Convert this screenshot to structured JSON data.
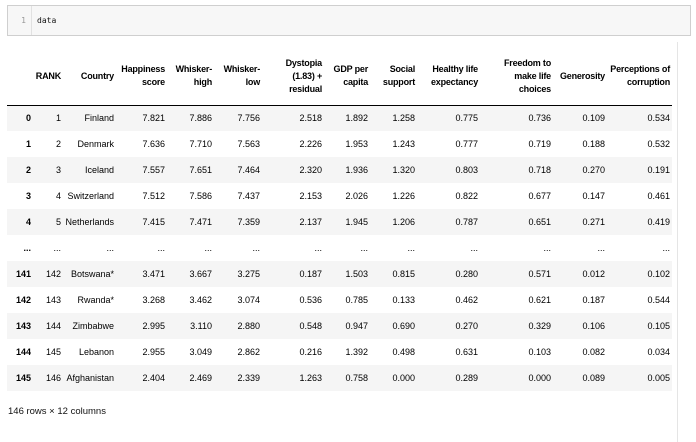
{
  "code_cell": {
    "line_number": "1",
    "code": "data"
  },
  "dataframe": {
    "index_header": "",
    "columns": [
      "RANK",
      "Country",
      "Happiness\nscore",
      "Whisker-\nhigh",
      "Whisker-\nlow",
      "Dystopia\n(1.83) +\nresidual",
      "GDP per\ncapita",
      "Social\nsupport",
      "Healthy life\nexpectancy",
      "Freedom to\nmake life\nchoices",
      "Generosity",
      "Perceptions of\ncorruption"
    ],
    "rows": [
      {
        "index": "0",
        "cells": [
          "1",
          "Finland",
          "7.821",
          "7.886",
          "7.756",
          "2.518",
          "1.892",
          "1.258",
          "0.775",
          "0.736",
          "0.109",
          "0.534"
        ]
      },
      {
        "index": "1",
        "cells": [
          "2",
          "Denmark",
          "7.636",
          "7.710",
          "7.563",
          "2.226",
          "1.953",
          "1.243",
          "0.777",
          "0.719",
          "0.188",
          "0.532"
        ]
      },
      {
        "index": "2",
        "cells": [
          "3",
          "Iceland",
          "7.557",
          "7.651",
          "7.464",
          "2.320",
          "1.936",
          "1.320",
          "0.803",
          "0.718",
          "0.270",
          "0.191"
        ]
      },
      {
        "index": "3",
        "cells": [
          "4",
          "Switzerland",
          "7.512",
          "7.586",
          "7.437",
          "2.153",
          "2.026",
          "1.226",
          "0.822",
          "0.677",
          "0.147",
          "0.461"
        ]
      },
      {
        "index": "4",
        "cells": [
          "5",
          "Netherlands",
          "7.415",
          "7.471",
          "7.359",
          "2.137",
          "1.945",
          "1.206",
          "0.787",
          "0.651",
          "0.271",
          "0.419"
        ]
      },
      {
        "index": "...",
        "cells": [
          "...",
          "...",
          "...",
          "...",
          "...",
          "...",
          "...",
          "...",
          "...",
          "...",
          "...",
          "..."
        ]
      },
      {
        "index": "141",
        "cells": [
          "142",
          "Botswana*",
          "3.471",
          "3.667",
          "3.275",
          "0.187",
          "1.503",
          "0.815",
          "0.280",
          "0.571",
          "0.012",
          "0.102"
        ]
      },
      {
        "index": "142",
        "cells": [
          "143",
          "Rwanda*",
          "3.268",
          "3.462",
          "3.074",
          "0.536",
          "0.785",
          "0.133",
          "0.462",
          "0.621",
          "0.187",
          "0.544"
        ]
      },
      {
        "index": "143",
        "cells": [
          "144",
          "Zimbabwe",
          "2.995",
          "3.110",
          "2.880",
          "0.548",
          "0.947",
          "0.690",
          "0.270",
          "0.329",
          "0.106",
          "0.105"
        ]
      },
      {
        "index": "144",
        "cells": [
          "145",
          "Lebanon",
          "2.955",
          "3.049",
          "2.862",
          "0.216",
          "1.392",
          "0.498",
          "0.631",
          "0.103",
          "0.082",
          "0.034"
        ]
      },
      {
        "index": "145",
        "cells": [
          "146",
          "Afghanistan",
          "2.404",
          "2.469",
          "2.339",
          "1.263",
          "0.758",
          "0.000",
          "0.289",
          "0.000",
          "0.089",
          "0.005"
        ]
      }
    ],
    "footer": "146 rows × 12 columns"
  },
  "colors": {
    "stripe": "#f5f5f5",
    "code_cell_bg": "#f7f7f7",
    "code_cell_border": "#cfcfcf",
    "header_rule": "#000000"
  }
}
